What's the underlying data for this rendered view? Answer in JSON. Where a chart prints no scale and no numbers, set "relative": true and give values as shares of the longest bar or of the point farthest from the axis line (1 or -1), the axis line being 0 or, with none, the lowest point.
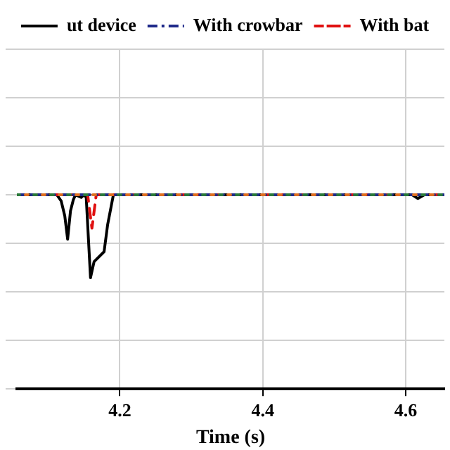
{
  "chart_data": {
    "type": "line",
    "xlabel": "Time (s)",
    "relative": true,
    "xlim": [
      4.056,
      4.654
    ],
    "xticks": [
      4.2,
      4.4,
      4.6
    ],
    "tick_labels": "x",
    "grid": true,
    "legend": "top",
    "marker": "none",
    "series": [
      {
        "name": "ut device",
        "color": "#000000",
        "line_style": "solid",
        "x": [
          4.056,
          4.112,
          4.118,
          4.123,
          4.127,
          4.131,
          4.135,
          4.138,
          4.146,
          4.15,
          4.153,
          4.159,
          4.164,
          4.178,
          4.183,
          4.191,
          4.196,
          4.609,
          4.617,
          4.626,
          4.654
        ],
        "values": [
          1,
          1,
          0.968,
          0.892,
          0.771,
          0.917,
          0.975,
          1,
          0.987,
          1,
          0.987,
          0.573,
          0.656,
          0.707,
          0.847,
          1,
          1,
          1,
          0.981,
          1,
          1
        ]
      },
      {
        "name": "With crowbar",
        "color": "#1f2a8a",
        "line_style": "dashdot",
        "x": [
          4.056,
          4.654
        ],
        "values": [
          1,
          1
        ]
      },
      {
        "name": "With bat",
        "color": "#e01010",
        "line_style": "dashed",
        "x": [
          4.056,
          4.155,
          4.161,
          4.167,
          4.654
        ],
        "values": [
          1,
          1,
          0.828,
          1,
          1
        ]
      },
      {
        "color": "#2a7a3a",
        "line_style": "dotted",
        "x": [
          4.056,
          4.654
        ],
        "values": [
          1,
          1
        ]
      },
      {
        "color": "#e07020",
        "line_style": "dotted",
        "x": [
          4.056,
          4.654
        ],
        "values": [
          1,
          1
        ]
      }
    ]
  }
}
